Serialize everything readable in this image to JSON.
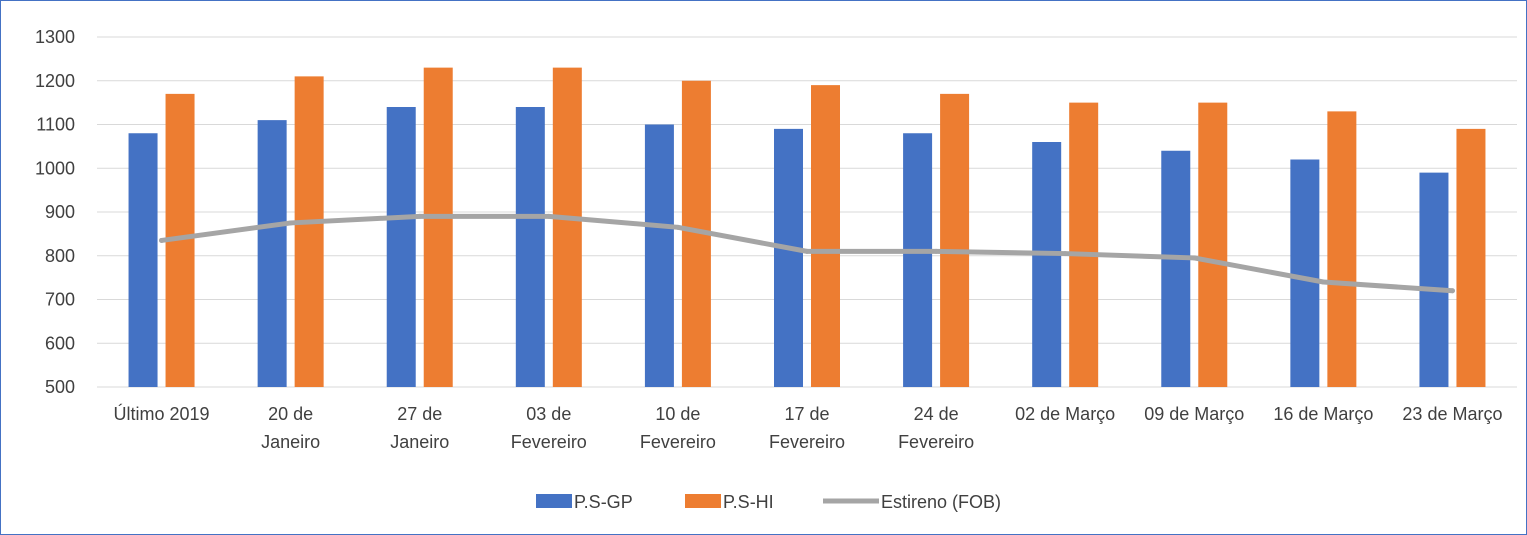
{
  "chart_data": {
    "type": "bar",
    "categories": [
      [
        "Último 2019"
      ],
      [
        "20 de",
        "Janeiro"
      ],
      [
        "27 de",
        "Janeiro"
      ],
      [
        "03 de",
        "Fevereiro"
      ],
      [
        "10 de",
        "Fevereiro"
      ],
      [
        "17 de",
        "Fevereiro"
      ],
      [
        "24 de",
        "Fevereiro"
      ],
      [
        "02 de Março"
      ],
      [
        "09 de Março"
      ],
      [
        "16 de Março"
      ],
      [
        "23 de Março"
      ]
    ],
    "series": [
      {
        "name": "P.S-GP",
        "type": "bar",
        "color": "#4472C4",
        "values": [
          1080,
          1110,
          1140,
          1140,
          1100,
          1090,
          1080,
          1060,
          1040,
          1020,
          990
        ]
      },
      {
        "name": "P.S-HI",
        "type": "bar",
        "color": "#ED7D31",
        "values": [
          1170,
          1210,
          1230,
          1230,
          1200,
          1190,
          1170,
          1150,
          1150,
          1130,
          1090
        ]
      },
      {
        "name": "Estireno (FOB)",
        "type": "line",
        "color": "#A5A5A5",
        "values": [
          835,
          875,
          890,
          890,
          865,
          810,
          810,
          805,
          795,
          740,
          720
        ]
      }
    ],
    "yticks": [
      500,
      600,
      700,
      800,
      900,
      1000,
      1100,
      1200,
      1300
    ],
    "ylim": [
      500,
      1300
    ],
    "grid": true,
    "legend_position": "bottom"
  }
}
